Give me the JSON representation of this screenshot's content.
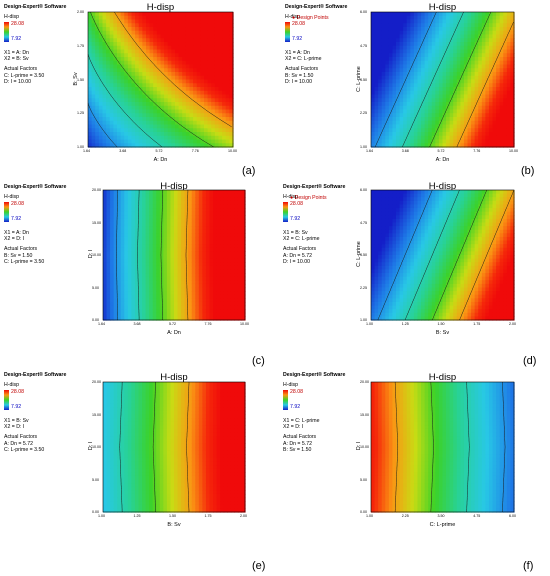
{
  "panels": [
    {
      "tag": "(a)",
      "title": "H-disp",
      "software": "Design-Expert® Software",
      "resp": "H-disp",
      "legend_hi": "28.08",
      "legend_lo": "7.92",
      "x_factors": [
        "X1 = A: Dn",
        "X2 = B: Sv"
      ],
      "actual_factors": [
        "C: L-prime = 3.50",
        "D: I = 10.00"
      ],
      "xlabel": "A: Dn",
      "ylabel": "B: Sv",
      "design_points": "",
      "xticks": [
        "1.64",
        "3.68",
        "5.72",
        "7.76",
        "10.00"
      ],
      "yticks": [
        "1.00",
        "1.25",
        "1.50",
        "1.75",
        "2.00"
      ]
    },
    {
      "tag": "(b)",
      "title": "H-disp",
      "software": "Design-Expert® Software",
      "resp": "H-disp",
      "legend_hi": "28.08",
      "legend_lo": "7.92",
      "x_factors": [
        "X1 = A: Dn",
        "X2 = C: L-prime"
      ],
      "actual_factors": [
        "B: Sv = 1.50",
        "D: I = 10.00"
      ],
      "xlabel": "A: Dn",
      "ylabel": "C: L-prime",
      "design_points": "● Design Points",
      "xticks": [
        "1.64",
        "3.68",
        "5.72",
        "7.76",
        "10.00"
      ],
      "yticks": [
        "1.00",
        "2.25",
        "3.50",
        "4.75",
        "6.00"
      ]
    },
    {
      "tag": "(c)",
      "title": "H-disp",
      "software": "Design-Expert® Software",
      "resp": "H-disp",
      "legend_hi": "28.08",
      "legend_lo": "7.92",
      "x_factors": [
        "X1 = A: Dn",
        "X2 = D: I"
      ],
      "actual_factors": [
        "B: Sv = 1.50",
        "C: L-prime = 3.50"
      ],
      "xlabel": "A: Dn",
      "ylabel": "D: I",
      "design_points": "",
      "xticks": [
        "1.64",
        "3.68",
        "5.72",
        "7.76",
        "10.00"
      ],
      "yticks": [
        "0.00",
        "5.00",
        "10.00",
        "15.00",
        "20.00"
      ]
    },
    {
      "tag": "(d)",
      "title": "H-disp",
      "software": "Design-Expert® Software",
      "resp": "H-disp",
      "legend_hi": "28.08",
      "legend_lo": "7.92",
      "x_factors": [
        "X1 = B: Sv",
        "X2 = C: L-prime"
      ],
      "actual_factors": [
        "A: Dn = 5.72",
        "D: I = 10.00"
      ],
      "xlabel": "B: Sv",
      "ylabel": "C: L-prime",
      "design_points": "● Design Points",
      "xticks": [
        "1.00",
        "1.25",
        "1.50",
        "1.75",
        "2.00"
      ],
      "yticks": [
        "1.00",
        "2.25",
        "3.50",
        "4.75",
        "6.00"
      ]
    },
    {
      "tag": "(e)",
      "title": "H-disp",
      "software": "Design-Expert® Software",
      "resp": "H-disp",
      "legend_hi": "28.08",
      "legend_lo": "7.92",
      "x_factors": [
        "X1 = B: Sv",
        "X2 = D: I"
      ],
      "actual_factors": [
        "A: Dn = 5.72",
        "C: L-prime = 3.50"
      ],
      "xlabel": "B: Sv",
      "ylabel": "D: I",
      "design_points": "",
      "xticks": [
        "1.00",
        "1.25",
        "1.50",
        "1.75",
        "2.00"
      ],
      "yticks": [
        "0.00",
        "5.00",
        "10.00",
        "15.00",
        "20.00"
      ]
    },
    {
      "tag": "(f)",
      "title": "H-disp",
      "software": "Design-Expert® Software",
      "resp": "H-disp",
      "legend_hi": "28.08",
      "legend_lo": "7.92",
      "x_factors": [
        "X1 = C: L-prime",
        "X2 = D: I"
      ],
      "actual_factors": [
        "A: Dn = 5.72",
        "B: Sv = 1.50"
      ],
      "xlabel": "C: L-prime",
      "ylabel": "D: I",
      "design_points": "",
      "xticks": [
        "1.00",
        "2.25",
        "3.50",
        "4.75",
        "6.00"
      ],
      "yticks": [
        "0.00",
        "5.00",
        "10.00",
        "15.00",
        "20.00"
      ]
    }
  ],
  "chart_data": [
    {
      "type": "heatmap",
      "title": "H-disp",
      "xlabel": "A: Dn",
      "ylabel": "B: Sv",
      "xlim": [
        1.64,
        10.0
      ],
      "ylim": [
        1.0,
        2.0
      ],
      "zlim": [
        7.92,
        28.08
      ],
      "contour_levels": [
        12,
        16,
        20,
        24
      ]
    },
    {
      "type": "heatmap",
      "title": "H-disp",
      "xlabel": "A: Dn",
      "ylabel": "C: L-prime",
      "xlim": [
        1.64,
        10.0
      ],
      "ylim": [
        1.0,
        6.0
      ],
      "zlim": [
        7.92,
        28.08
      ],
      "contour_levels": [
        12,
        16,
        20,
        24
      ]
    },
    {
      "type": "heatmap",
      "title": "H-disp",
      "xlabel": "A: Dn",
      "ylabel": "D: I",
      "xlim": [
        1.64,
        10.0
      ],
      "ylim": [
        0.0,
        20.0
      ],
      "zlim": [
        7.92,
        28.08
      ],
      "contour_levels": [
        12,
        16,
        20,
        24
      ]
    },
    {
      "type": "heatmap",
      "title": "H-disp",
      "xlabel": "B: Sv",
      "ylabel": "C: L-prime",
      "xlim": [
        1.0,
        2.0
      ],
      "ylim": [
        1.0,
        6.0
      ],
      "zlim": [
        7.92,
        28.08
      ],
      "contour_levels": [
        12,
        16,
        20,
        24
      ]
    },
    {
      "type": "heatmap",
      "title": "H-disp",
      "xlabel": "B: Sv",
      "ylabel": "D: I",
      "xlim": [
        1.0,
        2.0
      ],
      "ylim": [
        0.0,
        20.0
      ],
      "zlim": [
        7.92,
        28.08
      ],
      "contour_levels": [
        12,
        16,
        20,
        24
      ]
    },
    {
      "type": "heatmap",
      "title": "H-disp",
      "xlabel": "C: L-prime",
      "ylabel": "D: I",
      "xlim": [
        1.0,
        6.0
      ],
      "ylim": [
        0.0,
        20.0
      ],
      "zlim": [
        7.92,
        28.08
      ],
      "contour_levels": [
        12,
        16,
        20,
        24
      ]
    }
  ]
}
